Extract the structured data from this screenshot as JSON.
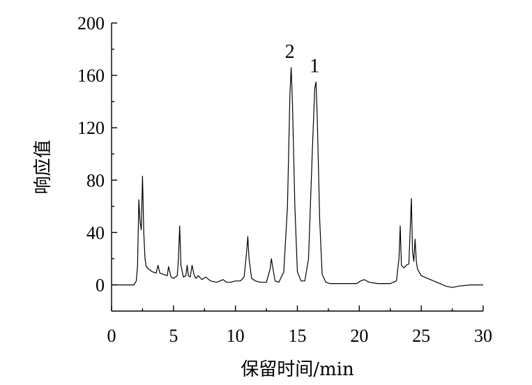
{
  "chart_data": {
    "type": "line",
    "title": "",
    "xlabel": "保留时间/min",
    "ylabel": "响应值",
    "xlim": [
      0,
      30
    ],
    "ylim": [
      -20,
      200
    ],
    "x_ticks": [
      0,
      5,
      10,
      15,
      20,
      25,
      30
    ],
    "y_ticks": [
      0,
      40,
      80,
      120,
      160,
      200
    ],
    "grid": false,
    "legend": "none",
    "annotations": [
      {
        "text": "2",
        "x": 14.5,
        "y": 166
      },
      {
        "text": "1",
        "x": 16.5,
        "y": 155
      }
    ],
    "series": [
      {
        "x": [
          0,
          1.5,
          1.8,
          2.0,
          2.1,
          2.2,
          2.3,
          2.4,
          2.5,
          2.6,
          2.7,
          2.8,
          3.0,
          3.3,
          3.6,
          3.75,
          3.9,
          4.2,
          4.5,
          4.6,
          4.8,
          5.0,
          5.3,
          5.4,
          5.5,
          5.6,
          5.8,
          6.0,
          6.1,
          6.2,
          6.35,
          6.5,
          6.65,
          6.8,
          7.0,
          7.3,
          7.6,
          8.0,
          8.5,
          9.0,
          9.3,
          9.6,
          10.0,
          10.4,
          10.7,
          10.9,
          11.0,
          11.1,
          11.3,
          11.6,
          12.0,
          12.5,
          12.8,
          12.9,
          13.0,
          13.2,
          13.5,
          13.9,
          14.2,
          14.4,
          14.5,
          14.6,
          14.8,
          15.0,
          15.3,
          15.6,
          15.9,
          16.2,
          16.4,
          16.5,
          16.6,
          16.8,
          17.0,
          17.3,
          17.6,
          18.0,
          19.0,
          19.8,
          20.1,
          20.4,
          20.8,
          21.5,
          22.5,
          23.0,
          23.2,
          23.3,
          23.4,
          23.6,
          23.8,
          24.0,
          24.2,
          24.3,
          24.4,
          24.5,
          24.6,
          24.7,
          25.0,
          25.5,
          26.0,
          26.5,
          27.0,
          27.5,
          28.0,
          29.0,
          30.0
        ],
        "values": [
          0,
          0,
          0,
          3,
          15,
          65,
          48,
          42,
          83,
          40,
          20,
          14,
          12,
          10,
          9,
          15,
          9,
          8,
          7,
          14,
          6,
          5,
          7,
          20,
          45,
          15,
          6,
          7,
          15,
          7,
          6,
          15,
          8,
          5,
          7,
          4,
          6,
          3,
          2,
          4,
          2,
          2,
          3,
          3,
          6,
          25,
          37,
          20,
          5,
          3,
          2,
          2,
          12,
          20,
          14,
          3,
          2,
          10,
          60,
          145,
          166,
          140,
          60,
          10,
          3,
          3,
          20,
          100,
          150,
          155,
          130,
          50,
          8,
          2,
          1,
          1,
          1,
          1,
          3,
          4,
          2,
          1,
          1,
          3,
          20,
          45,
          15,
          13,
          15,
          16,
          66,
          25,
          18,
          35,
          18,
          12,
          7,
          5,
          3,
          1,
          -1,
          -2,
          -1,
          0,
          0
        ]
      }
    ]
  }
}
